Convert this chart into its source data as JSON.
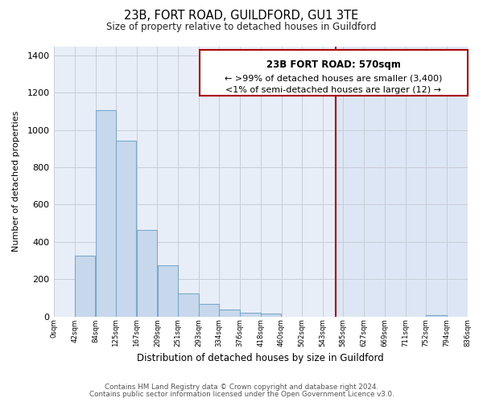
{
  "title": "23B, FORT ROAD, GUILDFORD, GU1 3TE",
  "subtitle": "Size of property relative to detached houses in Guildford",
  "xlabel": "Distribution of detached houses by size in Guildford",
  "ylabel": "Number of detached properties",
  "bar_values": [
    0,
    325,
    1105,
    945,
    462,
    275,
    125,
    65,
    35,
    20,
    15,
    0,
    0,
    0,
    0,
    0,
    0,
    0,
    5,
    0
  ],
  "bar_left_edges": [
    0,
    42,
    84,
    125,
    167,
    209,
    251,
    293,
    334,
    376,
    418,
    460,
    502,
    543,
    585,
    627,
    669,
    711,
    752,
    794
  ],
  "bar_widths": [
    42,
    42,
    41,
    42,
    42,
    42,
    42,
    41,
    42,
    42,
    42,
    42,
    41,
    42,
    42,
    42,
    42,
    41,
    42,
    42
  ],
  "tick_labels": [
    "0sqm",
    "42sqm",
    "84sqm",
    "125sqm",
    "167sqm",
    "209sqm",
    "251sqm",
    "293sqm",
    "334sqm",
    "376sqm",
    "418sqm",
    "460sqm",
    "502sqm",
    "543sqm",
    "585sqm",
    "627sqm",
    "669sqm",
    "711sqm",
    "752sqm",
    "794sqm",
    "836sqm"
  ],
  "tick_positions": [
    0,
    42,
    84,
    125,
    167,
    209,
    251,
    293,
    334,
    376,
    418,
    460,
    502,
    543,
    585,
    627,
    669,
    711,
    752,
    794,
    836
  ],
  "bar_color": "#c8d8ec",
  "bar_edge_color": "#7aa8cc",
  "vline_x": 570,
  "vline_color": "#aa0000",
  "ylim": [
    0,
    1450
  ],
  "xlim": [
    0,
    836
  ],
  "annotation_title": "23B FORT ROAD: 570sqm",
  "annotation_line1": "← >99% of detached houses are smaller (3,400)",
  "annotation_line2": "<1% of semi-detached houses are larger (12) →",
  "footnote1": "Contains HM Land Registry data © Crown copyright and database right 2024.",
  "footnote2": "Contains public sector information licensed under the Open Government Licence v3.0.",
  "plot_bg_color": "#e8eef8",
  "right_panel_color": "#dde6f4",
  "fig_bg_color": "#ffffff",
  "grid_color": "#c8ccd8"
}
